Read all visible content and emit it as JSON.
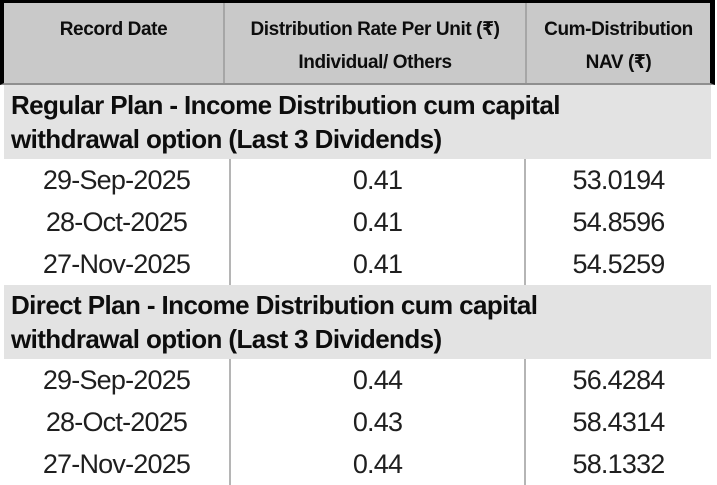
{
  "table": {
    "header": {
      "record_date": "Record Date",
      "rate_line1": "Distribution Rate Per Unit  (₹)",
      "rate_line2": "Individual/ Others",
      "nav_line1": "Cum-Distribution",
      "nav_line2": "NAV (₹)"
    },
    "sections": [
      {
        "title_line1": "Regular Plan - Income Distribution cum capital",
        "title_line2": "withdrawal option (Last 3 Dividends)",
        "rows": [
          {
            "record_date": "29-Sep-2025",
            "rate": "0.41",
            "nav": "53.0194"
          },
          {
            "record_date": "28-Oct-2025",
            "rate": "0.41",
            "nav": "54.8596"
          },
          {
            "record_date": "27-Nov-2025",
            "rate": "0.41",
            "nav": "54.5259"
          }
        ]
      },
      {
        "title_line1": "Direct Plan - Income Distribution cum capital",
        "title_line2": "withdrawal option (Last 3 Dividends)",
        "rows": [
          {
            "record_date": "29-Sep-2025",
            "rate": "0.44",
            "nav": "56.4284"
          },
          {
            "record_date": "28-Oct-2025",
            "rate": "0.43",
            "nav": "58.4314"
          },
          {
            "record_date": "27-Nov-2025",
            "rate": "0.44",
            "nav": "58.1332"
          }
        ]
      }
    ]
  },
  "colors": {
    "header_bg": "#c9c9c9",
    "section_bg": "#e3e3e3",
    "outer_border": "#000000",
    "header_divider": "#a6a6a6",
    "body_divider": "#b5b5b5",
    "text": "#1f1f1f"
  }
}
